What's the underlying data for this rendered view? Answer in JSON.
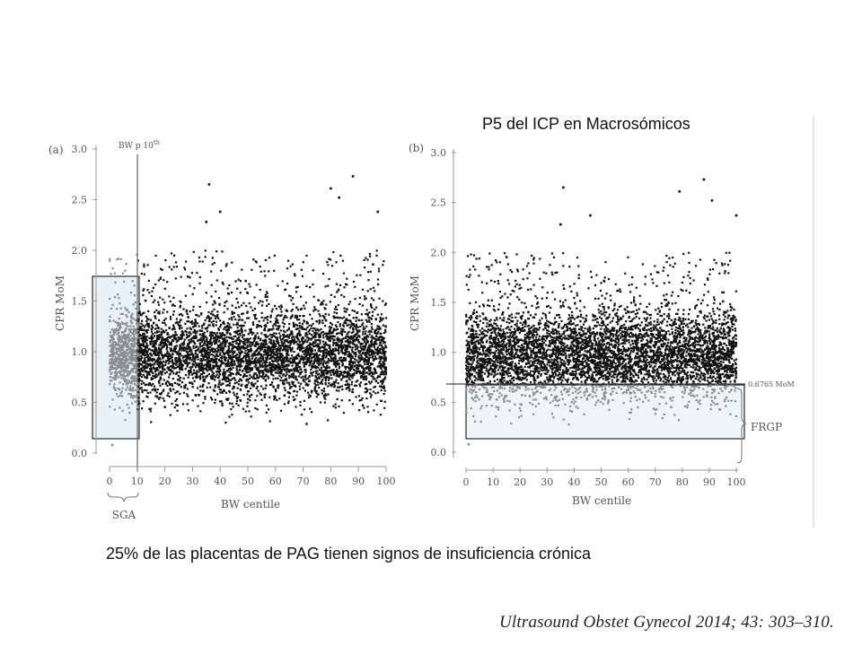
{
  "slide": {
    "title": "P5 del ICP en Macrosómicos",
    "caption": "25% de las placentas de PAG tienen signos de insuficiencia crónica",
    "citation": "Ultrasound Obstet Gynecol 2014; 43: 303–310."
  },
  "colors": {
    "dark_points": "#111111",
    "light_points": "#8a8d90",
    "highlight_fill": "#e8f1f8",
    "box_stroke": "#000000",
    "axis": "#999999"
  },
  "chart_data": [
    {
      "panel_label": "(a)",
      "type": "scatter",
      "xlabel": "BW centile",
      "ylabel": "CPR MoM",
      "xlim": [
        0,
        100
      ],
      "ylim": [
        0,
        3.0
      ],
      "xticks": [
        "0",
        "10",
        "20",
        "30",
        "40",
        "50",
        "60",
        "70",
        "80",
        "90",
        "100"
      ],
      "yticks": [
        "0.0",
        "0.5",
        "1.0",
        "1.5",
        "2.0",
        "2.5",
        "3.0"
      ],
      "grid": false,
      "vline": {
        "x": 10,
        "label": "BW p 10",
        "label_sup": "th"
      },
      "bracket": {
        "x_from": 0,
        "x_to": 10,
        "label": "SGA"
      },
      "highlight_box": {
        "x_from": -6,
        "x_to": 11,
        "y_from": 0.13,
        "y_to": 1.75
      },
      "density": {
        "x_range": [
          0,
          100
        ],
        "core_y": [
          0.5,
          1.4
        ],
        "spread_y": [
          0.3,
          2.0
        ],
        "outlier_max_y": 2.75,
        "highlight_series": "SGA (x < 10)"
      },
      "notable_points": [
        {
          "x": 36,
          "y": 2.65
        },
        {
          "x": 88,
          "y": 2.73
        },
        {
          "x": 80,
          "y": 2.61
        },
        {
          "x": 83,
          "y": 2.52
        },
        {
          "x": 40,
          "y": 2.38
        },
        {
          "x": 35,
          "y": 2.28
        },
        {
          "x": 97,
          "y": 2.38
        },
        {
          "x": 1,
          "y": 0.08
        }
      ]
    },
    {
      "panel_label": "(b)",
      "type": "scatter",
      "xlabel": "BW centile",
      "ylabel": "CPR MoM",
      "xlim": [
        0,
        100
      ],
      "ylim": [
        0,
        3.0
      ],
      "xticks": [
        "0",
        "10",
        "20",
        "30",
        "40",
        "50",
        "60",
        "70",
        "80",
        "90",
        "100"
      ],
      "yticks": [
        "0.0",
        "0.5",
        "1.0",
        "1.5",
        "2.0",
        "2.5",
        "3.0"
      ],
      "grid": false,
      "hline": {
        "y": 0.6765,
        "label": "0.6765 MoM"
      },
      "bracket_right": {
        "y_from": 0.0,
        "y_to": 0.6765,
        "label": "FRGP"
      },
      "highlight_box": {
        "x_from": 0,
        "x_to": 100,
        "y_from": 0.13,
        "y_to": 0.6765
      },
      "density": {
        "x_range": [
          0,
          100
        ],
        "core_y": [
          0.5,
          1.4
        ],
        "spread_y": [
          0.3,
          2.0
        ],
        "outlier_max_y": 2.75,
        "highlight_series": "y < 0.6765"
      },
      "notable_points": [
        {
          "x": 36,
          "y": 2.65
        },
        {
          "x": 88,
          "y": 2.73
        },
        {
          "x": 79,
          "y": 2.61
        },
        {
          "x": 91,
          "y": 2.52
        },
        {
          "x": 46,
          "y": 2.37
        },
        {
          "x": 35,
          "y": 2.28
        },
        {
          "x": 100,
          "y": 2.37
        },
        {
          "x": 1,
          "y": 0.08
        }
      ]
    }
  ]
}
